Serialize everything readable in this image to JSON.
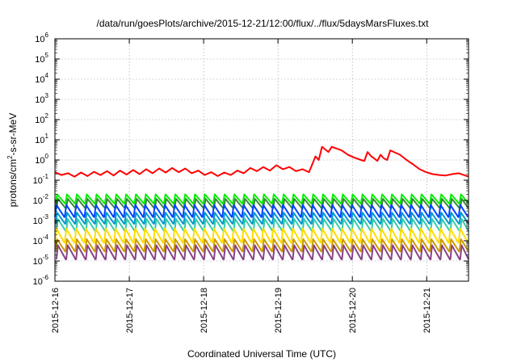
{
  "chart_data": {
    "type": "line",
    "title": "/data/run/goesPlots/archive/2015-12-21/12:00/flux/../flux/5daysMarsFluxes.txt",
    "xlabel": "Coordinated Universal Time (UTC)",
    "ylabel": {
      "base": "protons/cm",
      "exp": "2",
      "rest": "-s-sr-MeV"
    },
    "yscale": "log",
    "ylim_exp": [
      -6,
      6
    ],
    "xlim": [
      "2015-12-16 00:00",
      "2015-12-21 13:30"
    ],
    "x_ticks": [
      "2015-12-16",
      "2015-12-17",
      "2015-12-18",
      "2015-12-19",
      "2015-12-20",
      "2015-12-21"
    ],
    "y_ticks": [
      {
        "base": "10",
        "exp": "6"
      },
      {
        "base": "10",
        "exp": "5"
      },
      {
        "base": "10",
        "exp": "4"
      },
      {
        "base": "10",
        "exp": "3"
      },
      {
        "base": "10",
        "exp": "2"
      },
      {
        "base": "10",
        "exp": "1"
      },
      {
        "base": "10",
        "exp": "0"
      },
      {
        "base": "10",
        "exp": "-1"
      },
      {
        "base": "10",
        "exp": "-2"
      },
      {
        "base": "10",
        "exp": "-3"
      },
      {
        "base": "10",
        "exp": "-4"
      },
      {
        "base": "10",
        "exp": "-5"
      },
      {
        "base": "10",
        "exp": "-6"
      }
    ],
    "grid": true,
    "series": [
      {
        "color": "#ff0000",
        "points": [
          [
            0.0,
            0.25
          ],
          [
            0.1,
            0.18
          ],
          [
            0.2,
            0.22
          ],
          [
            0.3,
            0.15
          ],
          [
            0.4,
            0.24
          ],
          [
            0.5,
            0.16
          ],
          [
            0.6,
            0.26
          ],
          [
            0.7,
            0.18
          ],
          [
            0.8,
            0.28
          ],
          [
            0.9,
            0.17
          ],
          [
            1.0,
            0.3
          ],
          [
            1.1,
            0.19
          ],
          [
            1.2,
            0.32
          ],
          [
            1.3,
            0.2
          ],
          [
            1.4,
            0.35
          ],
          [
            1.5,
            0.22
          ],
          [
            1.6,
            0.38
          ],
          [
            1.7,
            0.24
          ],
          [
            1.8,
            0.4
          ],
          [
            1.9,
            0.25
          ],
          [
            2.0,
            0.38
          ],
          [
            2.1,
            0.22
          ],
          [
            2.2,
            0.3
          ],
          [
            2.3,
            0.18
          ],
          [
            2.4,
            0.25
          ],
          [
            2.5,
            0.16
          ],
          [
            2.6,
            0.24
          ],
          [
            2.7,
            0.18
          ],
          [
            2.8,
            0.3
          ],
          [
            2.9,
            0.22
          ],
          [
            3.0,
            0.4
          ],
          [
            3.1,
            0.28
          ],
          [
            3.2,
            0.45
          ],
          [
            3.3,
            0.3
          ],
          [
            3.4,
            0.55
          ],
          [
            3.5,
            0.35
          ],
          [
            3.6,
            0.45
          ],
          [
            3.7,
            0.28
          ],
          [
            3.8,
            0.35
          ],
          [
            3.9,
            0.25
          ],
          [
            3.95,
            0.6
          ],
          [
            4.0,
            1.5
          ],
          [
            4.05,
            1.0
          ],
          [
            4.1,
            4.5
          ],
          [
            4.2,
            2.5
          ],
          [
            4.25,
            4.5
          ],
          [
            4.4,
            3.0
          ],
          [
            4.5,
            1.8
          ],
          [
            4.6,
            1.3
          ],
          [
            4.7,
            1.0
          ],
          [
            4.75,
            0.9
          ],
          [
            4.8,
            2.5
          ],
          [
            4.85,
            1.6
          ],
          [
            4.95,
            0.9
          ],
          [
            5.0,
            1.8
          ],
          [
            5.05,
            1.2
          ],
          [
            5.1,
            1.0
          ],
          [
            5.15,
            3.0
          ],
          [
            5.3,
            1.8
          ],
          [
            5.4,
            1.0
          ],
          [
            5.5,
            0.6
          ],
          [
            5.6,
            0.35
          ],
          [
            5.7,
            0.25
          ],
          [
            5.8,
            0.2
          ],
          [
            5.9,
            0.18
          ],
          [
            6.0,
            0.17
          ],
          [
            6.1,
            0.2
          ],
          [
            6.2,
            0.22
          ],
          [
            6.35,
            0.15
          ]
        ]
      },
      {
        "color": "#00ee00",
        "peak": 0.02,
        "trough": 0.007
      },
      {
        "color": "#3a8a3a",
        "peak": 0.012,
        "trough": 0.004
      },
      {
        "color": "#0044ff",
        "peak": 0.006,
        "trough": 0.0015
      },
      {
        "color": "#0099cc",
        "peak": 0.0025,
        "trough": 0.0007
      },
      {
        "color": "#33ccaa",
        "peak": 0.0012,
        "trough": 0.0003
      },
      {
        "color": "#ffdd00",
        "peak": 0.0004,
        "trough": 8e-05
      },
      {
        "color": "#cc9900",
        "peak": 0.00012,
        "trough": 3e-05
      },
      {
        "color": "#884488",
        "peak": 6e-05,
        "trough": 1.2e-05
      }
    ],
    "sawtooth_cycles": 42
  }
}
